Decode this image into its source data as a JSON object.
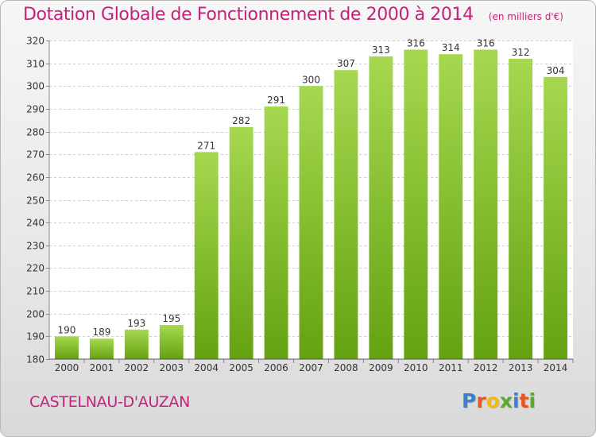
{
  "title": "Dotation Globale de Fonctionnement de 2000 à 2014",
  "unit": "(en milliers d'€)",
  "commune": "CASTELNAU-D'AUZAN",
  "brand": "Proxiti",
  "colors": {
    "title": "#c4227a",
    "bar_top": "#a6d84f",
    "bar_bottom": "#64a212",
    "logo_letters": [
      "#3b7fd0",
      "#e8561c",
      "#f2b90f",
      "#5aa82c",
      "#3b7fd0",
      "#e8561c",
      "#5aa82c"
    ]
  },
  "chart_data": {
    "type": "bar",
    "categories": [
      "2000",
      "2001",
      "2002",
      "2003",
      "2004",
      "2005",
      "2006",
      "2007",
      "2008",
      "2009",
      "2010",
      "2011",
      "2012",
      "2013",
      "2014"
    ],
    "values": [
      190,
      189,
      193,
      195,
      271,
      282,
      291,
      300,
      307,
      313,
      316,
      314,
      316,
      312,
      304
    ],
    "ylim": [
      180,
      320
    ],
    "yticks": [
      180,
      190,
      200,
      210,
      220,
      230,
      240,
      250,
      260,
      270,
      280,
      290,
      300,
      310,
      320
    ],
    "grid": true,
    "xlabel": "",
    "ylabel": "",
    "data_labels": true
  }
}
